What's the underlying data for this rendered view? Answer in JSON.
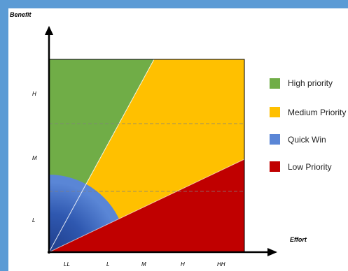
{
  "diagram": {
    "y_axis_title": "Benefit",
    "x_axis_title": "Effort",
    "y_levels": [
      "H",
      "M",
      "L"
    ],
    "x_levels": [
      "LL",
      "L",
      "M",
      "H",
      "HH"
    ],
    "colors": {
      "high": "#70ad47",
      "medium": "#ffc000",
      "quick_win": "#4472c4",
      "low": "#c00000",
      "frame": "#5b9bd5"
    },
    "legend": [
      {
        "label": "High priority",
        "color": "#70ad47"
      },
      {
        "label": "Medium Priority",
        "color": "#ffc000"
      },
      {
        "label": "Quick Win",
        "color": "#4472c4"
      },
      {
        "label": "Low Priority",
        "color": "#c00000"
      }
    ]
  }
}
